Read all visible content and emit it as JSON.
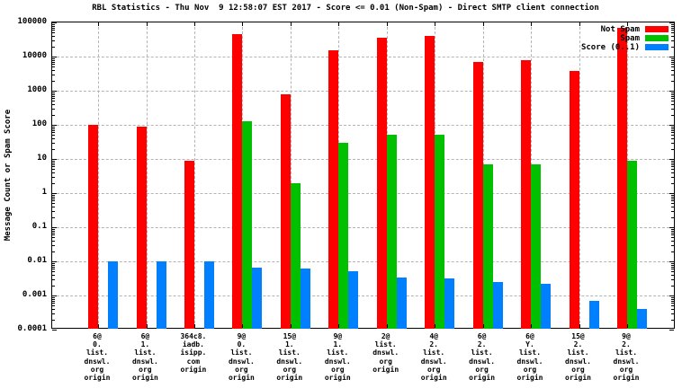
{
  "title": "RBL Statistics - Thu Nov  9 12:58:07 EST 2017 - Score <= 0.01 (Non-Spam) - Direct SMTP client connection",
  "colors": {
    "not_spam": "#ff0000",
    "spam": "#00c000",
    "score": "#0080ff",
    "grid": "#b4b4b4",
    "axis": "#000000",
    "background": "#ffffff"
  },
  "legend": {
    "position": "top-right",
    "entries": [
      "Not Spam",
      "Spam",
      "Score (0..1)"
    ]
  },
  "chart_data": {
    "type": "bar",
    "title": "RBL Statistics - Thu Nov  9 12:58:07 EST 2017 - Score <= 0.01 (Non-Spam) - Direct SMTP client connection",
    "xlabel": "",
    "ylabel": "Message Count or Spam Score",
    "y_scale": "log10",
    "ylim": [
      0.0001,
      100000
    ],
    "y_ticks": [
      "100000",
      "10000",
      "1000",
      "100",
      "10",
      "1",
      "0.1",
      "0.01",
      "0.001",
      "0.0001"
    ],
    "grid": true,
    "legend_position": "top-right",
    "categories": [
      [
        "6@",
        "0.",
        "list.",
        "dnswl.",
        "org",
        "origin"
      ],
      [
        "6@",
        "1.",
        "list.",
        "dnswl.",
        "org",
        "origin"
      ],
      [
        "364c8.",
        "iadb.",
        "isipp.",
        "com",
        "origin"
      ],
      [
        "9@",
        "0.",
        "list.",
        "dnswl.",
        "org",
        "origin"
      ],
      [
        "15@",
        "1.",
        "list.",
        "dnswl.",
        "org",
        "origin"
      ],
      [
        "9@",
        "1.",
        "list.",
        "dnswl.",
        "org",
        "origin"
      ],
      [
        "2@",
        "list.",
        "dnswl.",
        "org",
        "origin"
      ],
      [
        "4@",
        "2.",
        "list.",
        "dnswl.",
        "org",
        "origin"
      ],
      [
        "6@",
        "2.",
        "list.",
        "dnswl.",
        "org",
        "origin"
      ],
      [
        "6@",
        "Y.",
        "list.",
        "dnswl.",
        "org",
        "origin"
      ],
      [
        "15@",
        "2.",
        "list.",
        "dnswl.",
        "org",
        "origin"
      ],
      [
        "9@",
        "2.",
        "list.",
        "dnswl.",
        "org",
        "origin"
      ]
    ],
    "series": [
      {
        "name": "Not Spam",
        "color": "#ff0000",
        "values": [
          100,
          90,
          9,
          45000,
          800,
          15000,
          35000,
          40000,
          7000,
          8000,
          3800,
          70000
        ]
      },
      {
        "name": "Spam",
        "color": "#00c000",
        "values": [
          null,
          null,
          null,
          130,
          2,
          30,
          50,
          50,
          7,
          7,
          null,
          9
        ]
      },
      {
        "name": "Score (0..1)",
        "color": "#0080ff",
        "values": [
          0.01,
          0.01,
          0.01,
          0.0065,
          0.006,
          0.005,
          0.0033,
          0.0031,
          0.0025,
          0.0022,
          0.0007,
          0.0004
        ]
      }
    ]
  }
}
